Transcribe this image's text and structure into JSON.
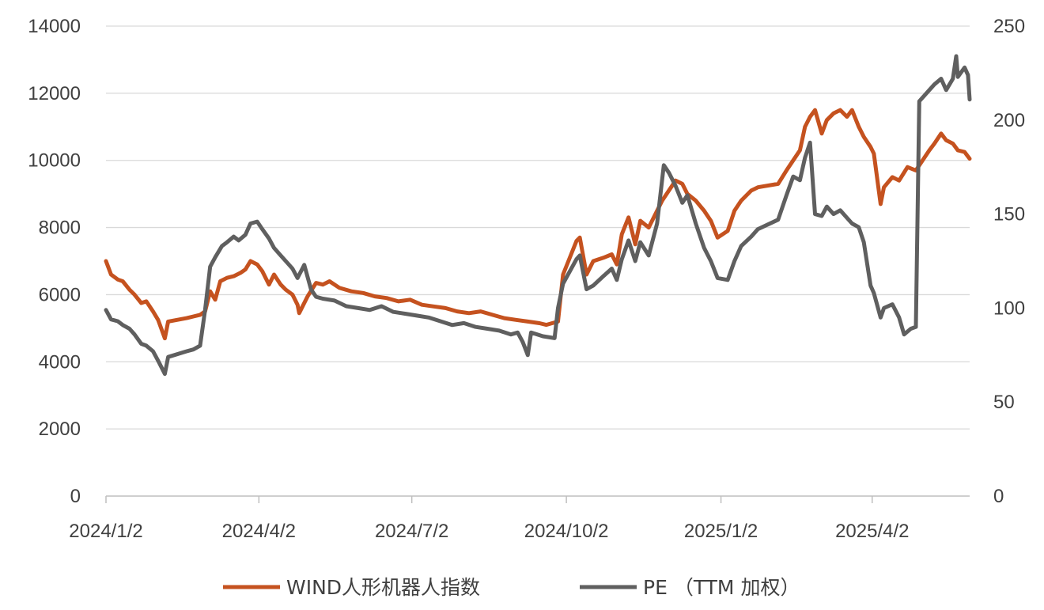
{
  "chart_data": {
    "type": "line",
    "title": "",
    "x_start": "2024/1/2",
    "x_end": "2025/5/30",
    "x_ticks": [
      "2024/1/2",
      "2024/4/2",
      "2024/7/2",
      "2024/10/2",
      "2025/1/2",
      "2025/4/2"
    ],
    "y_left": {
      "ylim": [
        0,
        14000
      ],
      "ticks": [
        0,
        2000,
        4000,
        6000,
        8000,
        10000,
        12000,
        14000
      ]
    },
    "y_right": {
      "ylim": [
        0,
        250
      ],
      "ticks": [
        0,
        50,
        100,
        150,
        200,
        250
      ]
    },
    "grid": true,
    "legend": "bottom",
    "series": [
      {
        "name": "WIND人形机器人指数",
        "axis": "left",
        "color": "#C5521F",
        "points": [
          [
            "2024/1/2",
            7000
          ],
          [
            "2024/1/5",
            6600
          ],
          [
            "2024/1/9",
            6450
          ],
          [
            "2024/1/12",
            6400
          ],
          [
            "2024/1/16",
            6150
          ],
          [
            "2024/1/19",
            6000
          ],
          [
            "2024/1/23",
            5750
          ],
          [
            "2024/1/26",
            5800
          ],
          [
            "2024/1/30",
            5500
          ],
          [
            "2024/2/2",
            5250
          ],
          [
            "2024/2/6",
            4700
          ],
          [
            "2024/2/8",
            5200
          ],
          [
            "2024/2/19",
            5300
          ],
          [
            "2024/2/23",
            5350
          ],
          [
            "2024/2/27",
            5400
          ],
          [
            "2024/3/1",
            5500
          ],
          [
            "2024/3/4",
            6100
          ],
          [
            "2024/3/7",
            5850
          ],
          [
            "2024/3/10",
            6400
          ],
          [
            "2024/3/14",
            6500
          ],
          [
            "2024/3/18",
            6550
          ],
          [
            "2024/3/22",
            6650
          ],
          [
            "2024/3/25",
            6750
          ],
          [
            "2024/3/28",
            7000
          ],
          [
            "2024/4/1",
            6900
          ],
          [
            "2024/4/4",
            6700
          ],
          [
            "2024/4/8",
            6300
          ],
          [
            "2024/4/11",
            6600
          ],
          [
            "2024/4/15",
            6300
          ],
          [
            "2024/4/18",
            6150
          ],
          [
            "2024/4/22",
            6000
          ],
          [
            "2024/4/25",
            5700
          ],
          [
            "2024/4/26",
            5450
          ],
          [
            "2024/5/1",
            5950
          ],
          [
            "2024/5/6",
            6350
          ],
          [
            "2024/5/10",
            6300
          ],
          [
            "2024/5/14",
            6400
          ],
          [
            "2024/5/20",
            6200
          ],
          [
            "2024/5/27",
            6100
          ],
          [
            "2024/6/3",
            6050
          ],
          [
            "2024/6/10",
            5950
          ],
          [
            "2024/6/17",
            5900
          ],
          [
            "2024/6/24",
            5800
          ],
          [
            "2024/7/1",
            5850
          ],
          [
            "2024/7/8",
            5700
          ],
          [
            "2024/7/15",
            5650
          ],
          [
            "2024/7/22",
            5600
          ],
          [
            "2024/7/29",
            5500
          ],
          [
            "2024/8/5",
            5450
          ],
          [
            "2024/8/12",
            5500
          ],
          [
            "2024/8/19",
            5400
          ],
          [
            "2024/8/26",
            5300
          ],
          [
            "2024/9/2",
            5250
          ],
          [
            "2024/9/9",
            5200
          ],
          [
            "2024/9/16",
            5150
          ],
          [
            "2024/9/20",
            5100
          ],
          [
            "2024/9/27",
            5200
          ],
          [
            "2024/9/30",
            6600
          ],
          [
            "2024/10/8",
            7600
          ],
          [
            "2024/10/10",
            7700
          ],
          [
            "2024/10/14",
            6600
          ],
          [
            "2024/10/18",
            7000
          ],
          [
            "2024/10/24",
            7100
          ],
          [
            "2024/10/29",
            7200
          ],
          [
            "2024/11/1",
            6900
          ],
          [
            "2024/11/4",
            7800
          ],
          [
            "2024/11/8",
            8300
          ],
          [
            "2024/11/12",
            7500
          ],
          [
            "2024/11/15",
            8200
          ],
          [
            "2024/11/20",
            8000
          ],
          [
            "2024/11/25",
            8500
          ],
          [
            "2024/11/28",
            8800
          ],
          [
            "2024/12/2",
            9100
          ],
          [
            "2024/12/6",
            9400
          ],
          [
            "2024/12/10",
            9300
          ],
          [
            "2024/12/13",
            9000
          ],
          [
            "2024/12/18",
            8800
          ],
          [
            "2024/12/23",
            8500
          ],
          [
            "2024/12/27",
            8200
          ],
          [
            "2024/12/31",
            7700
          ],
          [
            "2025/1/6",
            7900
          ],
          [
            "2025/1/10",
            8500
          ],
          [
            "2025/1/14",
            8800
          ],
          [
            "2025/1/20",
            9100
          ],
          [
            "2025/1/24",
            9200
          ],
          [
            "2025/2/5",
            9300
          ],
          [
            "2025/2/10",
            9700
          ],
          [
            "2025/2/14",
            10000
          ],
          [
            "2025/2/18",
            10300
          ],
          [
            "2025/2/21",
            11000
          ],
          [
            "2025/2/24",
            11300
          ],
          [
            "2025/2/27",
            11500
          ],
          [
            "2025/3/3",
            10800
          ],
          [
            "2025/3/6",
            11200
          ],
          [
            "2025/3/10",
            11400
          ],
          [
            "2025/3/14",
            11500
          ],
          [
            "2025/3/18",
            11300
          ],
          [
            "2025/3/21",
            11500
          ],
          [
            "2025/3/25",
            11000
          ],
          [
            "2025/3/28",
            10700
          ],
          [
            "2025/4/1",
            10400
          ],
          [
            "2025/4/3",
            10200
          ],
          [
            "2025/4/7",
            8700
          ],
          [
            "2025/4/9",
            9200
          ],
          [
            "2025/4/14",
            9500
          ],
          [
            "2025/4/18",
            9400
          ],
          [
            "2025/4/23",
            9800
          ],
          [
            "2025/4/28",
            9700
          ],
          [
            "2025/5/6",
            10300
          ],
          [
            "2025/5/9",
            10500
          ],
          [
            "2025/5/13",
            10800
          ],
          [
            "2025/5/16",
            10600
          ],
          [
            "2025/5/20",
            10500
          ],
          [
            "2025/5/23",
            10300
          ],
          [
            "2025/5/27",
            10250
          ],
          [
            "2025/5/30",
            10050
          ]
        ]
      },
      {
        "name": "PE （TTM 加权）",
        "axis": "right",
        "color": "#5F5F5F",
        "points": [
          [
            "2024/1/2",
            99
          ],
          [
            "2024/1/5",
            94
          ],
          [
            "2024/1/9",
            93
          ],
          [
            "2024/1/12",
            91
          ],
          [
            "2024/1/16",
            89
          ],
          [
            "2024/1/19",
            86
          ],
          [
            "2024/1/23",
            81
          ],
          [
            "2024/1/26",
            80
          ],
          [
            "2024/1/30",
            77
          ],
          [
            "2024/2/2",
            72
          ],
          [
            "2024/2/6",
            65
          ],
          [
            "2024/2/8",
            74
          ],
          [
            "2024/2/19",
            77
          ],
          [
            "2024/2/23",
            78
          ],
          [
            "2024/2/27",
            80
          ],
          [
            "2024/3/1",
            99
          ],
          [
            "2024/3/4",
            122
          ],
          [
            "2024/3/7",
            127
          ],
          [
            "2024/3/11",
            133
          ],
          [
            "2024/3/14",
            135
          ],
          [
            "2024/3/18",
            138
          ],
          [
            "2024/3/21",
            136
          ],
          [
            "2024/3/25",
            139
          ],
          [
            "2024/3/28",
            145
          ],
          [
            "2024/4/1",
            146
          ],
          [
            "2024/4/4",
            142
          ],
          [
            "2024/4/8",
            137
          ],
          [
            "2024/4/11",
            132
          ],
          [
            "2024/4/15",
            128
          ],
          [
            "2024/4/18",
            125
          ],
          [
            "2024/4/22",
            121
          ],
          [
            "2024/4/25",
            116
          ],
          [
            "2024/4/29",
            123
          ],
          [
            "2024/5/3",
            110
          ],
          [
            "2024/5/6",
            106
          ],
          [
            "2024/5/10",
            105
          ],
          [
            "2024/5/17",
            104
          ],
          [
            "2024/5/24",
            101
          ],
          [
            "2024/5/31",
            100
          ],
          [
            "2024/6/7",
            99
          ],
          [
            "2024/6/14",
            101
          ],
          [
            "2024/6/21",
            98
          ],
          [
            "2024/6/28",
            97
          ],
          [
            "2024/7/5",
            96
          ],
          [
            "2024/7/12",
            95
          ],
          [
            "2024/7/19",
            93
          ],
          [
            "2024/7/26",
            91
          ],
          [
            "2024/8/2",
            92
          ],
          [
            "2024/8/9",
            90
          ],
          [
            "2024/8/16",
            89
          ],
          [
            "2024/8/23",
            88
          ],
          [
            "2024/8/30",
            86
          ],
          [
            "2024/9/3",
            87
          ],
          [
            "2024/9/6",
            82
          ],
          [
            "2024/9/9",
            75
          ],
          [
            "2024/9/11",
            87
          ],
          [
            "2024/9/18",
            85
          ],
          [
            "2024/9/25",
            84
          ],
          [
            "2024/9/27",
            100
          ],
          [
            "2024/9/30",
            113
          ],
          [
            "2024/10/8",
            126
          ],
          [
            "2024/10/10",
            128
          ],
          [
            "2024/10/14",
            110
          ],
          [
            "2024/10/18",
            112
          ],
          [
            "2024/10/24",
            117
          ],
          [
            "2024/10/29",
            121
          ],
          [
            "2024/11/1",
            115
          ],
          [
            "2024/11/4",
            126
          ],
          [
            "2024/11/8",
            136
          ],
          [
            "2024/11/12",
            125
          ],
          [
            "2024/11/15",
            135
          ],
          [
            "2024/11/20",
            128
          ],
          [
            "2024/11/25",
            145
          ],
          [
            "2024/11/29",
            176
          ],
          [
            "2024/12/2",
            172
          ],
          [
            "2024/12/6",
            165
          ],
          [
            "2024/12/10",
            156
          ],
          [
            "2024/12/13",
            160
          ],
          [
            "2024/12/18",
            145
          ],
          [
            "2024/12/23",
            132
          ],
          [
            "2024/12/27",
            125
          ],
          [
            "2024/12/31",
            116
          ],
          [
            "2025/1/6",
            115
          ],
          [
            "2025/1/10",
            125
          ],
          [
            "2025/1/14",
            133
          ],
          [
            "2025/1/20",
            138
          ],
          [
            "2025/1/24",
            142
          ],
          [
            "2025/2/5",
            147
          ],
          [
            "2025/2/10",
            160
          ],
          [
            "2025/2/14",
            170
          ],
          [
            "2025/2/18",
            168
          ],
          [
            "2025/2/21",
            180
          ],
          [
            "2025/2/24",
            188
          ],
          [
            "2025/2/27",
            150
          ],
          [
            "2025/3/3",
            149
          ],
          [
            "2025/3/6",
            154
          ],
          [
            "2025/3/10",
            150
          ],
          [
            "2025/3/14",
            152
          ],
          [
            "2025/3/18",
            148
          ],
          [
            "2025/3/21",
            145
          ],
          [
            "2025/3/25",
            143
          ],
          [
            "2025/3/28",
            135
          ],
          [
            "2025/4/1",
            112
          ],
          [
            "2025/4/3",
            108
          ],
          [
            "2025/4/7",
            95
          ],
          [
            "2025/4/9",
            100
          ],
          [
            "2025/4/14",
            102
          ],
          [
            "2025/4/18",
            95
          ],
          [
            "2025/4/21",
            86
          ],
          [
            "2025/4/25",
            89
          ],
          [
            "2025/4/28",
            90
          ],
          [
            "2025/4/30",
            210
          ],
          [
            "2025/5/6",
            216
          ],
          [
            "2025/5/9",
            219
          ],
          [
            "2025/5/13",
            222
          ],
          [
            "2025/5/16",
            216
          ],
          [
            "2025/5/20",
            222
          ],
          [
            "2025/5/22",
            234
          ],
          [
            "2025/5/23",
            223
          ],
          [
            "2025/5/27",
            228
          ],
          [
            "2025/5/29",
            224
          ],
          [
            "2025/5/30",
            211
          ]
        ]
      }
    ]
  }
}
